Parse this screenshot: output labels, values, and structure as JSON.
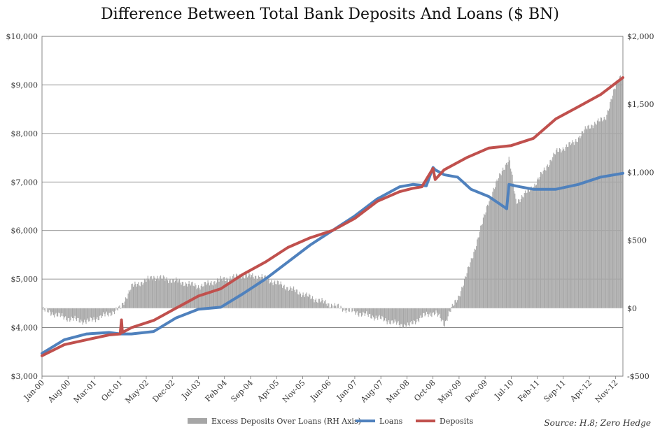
{
  "chart_data": {
    "type": "line",
    "title": "Difference Between Total Bank Deposits And Loans ($ BN)",
    "source": "Source: H.8; Zero Hedge",
    "x_labels": [
      "Jan-00",
      "Aug-00",
      "Mar-01",
      "Oct-01",
      "May-02",
      "Dec-02",
      "Jul-03",
      "Feb-04",
      "Sep-04",
      "Apr-05",
      "Nov-05",
      "Jun-06",
      "Jan-07",
      "Aug-07",
      "Mar-08",
      "Oct-08",
      "May-09",
      "Dec-09",
      "Jul-10",
      "Feb-11",
      "Sep-11",
      "Apr-12",
      "Nov-12"
    ],
    "y_left": {
      "ylim": [
        3000,
        10000
      ],
      "ticks": [
        3000,
        4000,
        5000,
        6000,
        7000,
        8000,
        9000,
        10000
      ],
      "tick_labels": [
        "$3,000",
        "$4,000",
        "$5,000",
        "$6,000",
        "$7,000",
        "$8,000",
        "$9,000",
        "$10,000"
      ]
    },
    "y_right": {
      "ylim": [
        -500,
        2000
      ],
      "ticks": [
        -500,
        0,
        500,
        1000,
        1500,
        2000
      ],
      "tick_labels": [
        "-$500",
        "$0",
        "$500",
        "$1,000",
        "$1,500",
        "$2,000"
      ]
    },
    "grid": true,
    "legend_position": "bottom",
    "series": [
      {
        "name": "Excess Deposits Over Loans (RH Axis)",
        "kind": "area",
        "axis": "right",
        "color": "#a6a6a6",
        "x": [
          2000.0,
          2000.5,
          2001.0,
          2001.5,
          2001.75,
          2002.0,
          2002.5,
          2003.0,
          2003.5,
          2004.0,
          2004.5,
          2004.9,
          2005.5,
          2006.0,
          2006.5,
          2007.0,
          2007.5,
          2008.0,
          2008.2,
          2008.5,
          2008.8,
          2009.0,
          2009.1,
          2009.3,
          2009.6,
          2010.0,
          2010.3,
          2010.45,
          2010.6,
          2011.0,
          2011.5,
          2011.9,
          2012.2,
          2012.6,
          2012.9,
          2013.0
        ],
        "values": [
          -10,
          -70,
          -100,
          -40,
          0,
          160,
          230,
          200,
          160,
          210,
          240,
          230,
          150,
          80,
          20,
          -30,
          -70,
          -120,
          -130,
          -60,
          -30,
          -120,
          -30,
          70,
          350,
          800,
          1020,
          1100,
          780,
          900,
          1150,
          1220,
          1330,
          1400,
          1700,
          1720
        ]
      },
      {
        "name": "Loans",
        "kind": "line",
        "axis": "left",
        "color": "#4f81bd",
        "x": [
          2000.0,
          2000.5,
          2001.0,
          2001.5,
          2001.75,
          2002.0,
          2002.5,
          2003.0,
          2003.5,
          2004.0,
          2004.5,
          2005.0,
          2005.5,
          2006.0,
          2006.5,
          2007.0,
          2007.5,
          2008.0,
          2008.3,
          2008.6,
          2008.75,
          2008.8,
          2009.0,
          2009.3,
          2009.6,
          2010.0,
          2010.4,
          2010.45,
          2010.7,
          2011.0,
          2011.5,
          2012.0,
          2012.5,
          2013.0
        ],
        "values": [
          3470,
          3750,
          3870,
          3900,
          3870,
          3870,
          3920,
          4200,
          4380,
          4420,
          4700,
          5000,
          5350,
          5700,
          6000,
          6300,
          6650,
          6900,
          6950,
          6920,
          7300,
          7250,
          7150,
          7100,
          6850,
          6700,
          6450,
          6950,
          6900,
          6850,
          6850,
          6950,
          7100,
          7180
        ]
      },
      {
        "name": "Deposits",
        "kind": "line",
        "axis": "left",
        "color": "#c0504d",
        "x": [
          2000.0,
          2000.5,
          2001.0,
          2001.5,
          2001.75,
          2001.78,
          2001.8,
          2002.0,
          2002.5,
          2003.0,
          2003.5,
          2004.0,
          2004.5,
          2005.0,
          2005.5,
          2006.0,
          2006.5,
          2007.0,
          2007.5,
          2008.0,
          2008.3,
          2008.5,
          2008.75,
          2008.8,
          2009.0,
          2009.5,
          2010.0,
          2010.5,
          2011.0,
          2011.5,
          2012.0,
          2012.5,
          2013.0
        ],
        "values": [
          3420,
          3650,
          3750,
          3850,
          3870,
          4160,
          3900,
          4000,
          4150,
          4400,
          4650,
          4800,
          5100,
          5350,
          5650,
          5850,
          6000,
          6250,
          6600,
          6800,
          6870,
          6900,
          7280,
          7050,
          7250,
          7500,
          7700,
          7750,
          7900,
          8300,
          8550,
          8800,
          9150
        ]
      }
    ]
  }
}
